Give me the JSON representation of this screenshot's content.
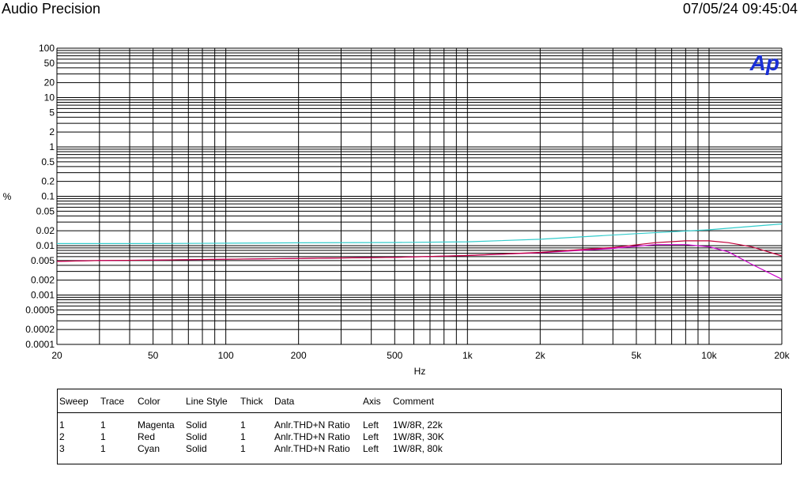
{
  "header": {
    "title": "Audio Precision",
    "timestamp": "07/05/24 09:45:04"
  },
  "logo_text": "Ap",
  "colors": {
    "grid": "#000000",
    "logo": "#1a2fd6",
    "magenta": "#cc00cc",
    "red": "#c0003a",
    "cyan": "#33cccc"
  },
  "chart_data": {
    "type": "line",
    "xlabel": "Hz",
    "ylabel": "%",
    "x_scale": "log",
    "y_scale": "log",
    "xlim": [
      20,
      20000
    ],
    "ylim": [
      0.0001,
      100
    ],
    "grid": true,
    "x_ticks": [
      {
        "v": 20,
        "label": "20"
      },
      {
        "v": 50,
        "label": "50"
      },
      {
        "v": 100,
        "label": "100"
      },
      {
        "v": 200,
        "label": "200"
      },
      {
        "v": 500,
        "label": "500"
      },
      {
        "v": 1000,
        "label": "1k"
      },
      {
        "v": 2000,
        "label": "2k"
      },
      {
        "v": 5000,
        "label": "5k"
      },
      {
        "v": 10000,
        "label": "10k"
      },
      {
        "v": 20000,
        "label": "20k"
      }
    ],
    "y_ticks": [
      {
        "v": 100,
        "label": "100"
      },
      {
        "v": 50,
        "label": "50"
      },
      {
        "v": 20,
        "label": "20"
      },
      {
        "v": 10,
        "label": "10"
      },
      {
        "v": 5,
        "label": "5"
      },
      {
        "v": 2,
        "label": "2"
      },
      {
        "v": 1,
        "label": "1"
      },
      {
        "v": 0.5,
        "label": "0.5"
      },
      {
        "v": 0.2,
        "label": "0.2"
      },
      {
        "v": 0.1,
        "label": "0.1"
      },
      {
        "v": 0.05,
        "label": "0.05"
      },
      {
        "v": 0.02,
        "label": "0.02"
      },
      {
        "v": 0.01,
        "label": "0.01"
      },
      {
        "v": 0.005,
        "label": "0.005"
      },
      {
        "v": 0.002,
        "label": "0.002"
      },
      {
        "v": 0.001,
        "label": "0.001"
      },
      {
        "v": 0.0005,
        "label": "0.0005"
      },
      {
        "v": 0.0002,
        "label": "0.0002"
      },
      {
        "v": 0.0001,
        "label": "0.0001"
      }
    ],
    "series": [
      {
        "sweep": "1",
        "color": "#cc00cc",
        "x": [
          20,
          30,
          50,
          100,
          200,
          500,
          1000,
          2000,
          4000,
          6000,
          8000,
          10000,
          12000,
          15000,
          20000
        ],
        "y": [
          0.0048,
          0.005,
          0.0051,
          0.0053,
          0.0055,
          0.0058,
          0.0063,
          0.0072,
          0.0088,
          0.0105,
          0.0105,
          0.0095,
          0.0075,
          0.0042,
          0.0021
        ]
      },
      {
        "sweep": "2",
        "color": "#c0003a",
        "x": [
          20,
          30,
          50,
          100,
          200,
          500,
          1000,
          2000,
          4000,
          6000,
          8000,
          10000,
          12000,
          15000,
          20000
        ],
        "y": [
          0.0048,
          0.005,
          0.0051,
          0.0053,
          0.0055,
          0.0058,
          0.0063,
          0.0073,
          0.0092,
          0.0115,
          0.0125,
          0.0125,
          0.0115,
          0.0095,
          0.0062
        ]
      },
      {
        "sweep": "3",
        "color": "#33cccc",
        "x": [
          20,
          50,
          100,
          200,
          500,
          1000,
          2000,
          5000,
          10000,
          20000
        ],
        "y": [
          0.011,
          0.011,
          0.0112,
          0.0114,
          0.0116,
          0.012,
          0.0135,
          0.0175,
          0.021,
          0.0275
        ]
      }
    ]
  },
  "legend": {
    "headers": {
      "sweep": "Sweep",
      "trace": "Trace",
      "color": "Color",
      "line_style": "Line Style",
      "thick": "Thick",
      "data": "Data",
      "axis": "Axis",
      "comment": "Comment"
    },
    "rows": [
      {
        "sweep": "1",
        "trace": "1",
        "color": "Magenta",
        "line_style": "Solid",
        "thick": "1",
        "data": "Anlr.THD+N Ratio",
        "axis": "Left",
        "comment": "1W/8R, 22k"
      },
      {
        "sweep": "2",
        "trace": "1",
        "color": "Red",
        "line_style": "Solid",
        "thick": "1",
        "data": "Anlr.THD+N Ratio",
        "axis": "Left",
        "comment": "1W/8R, 30K"
      },
      {
        "sweep": "3",
        "trace": "1",
        "color": "Cyan",
        "line_style": "Solid",
        "thick": "1",
        "data": "Anlr.THD+N Ratio",
        "axis": "Left",
        "comment": "1W/8R, 80k"
      }
    ]
  }
}
